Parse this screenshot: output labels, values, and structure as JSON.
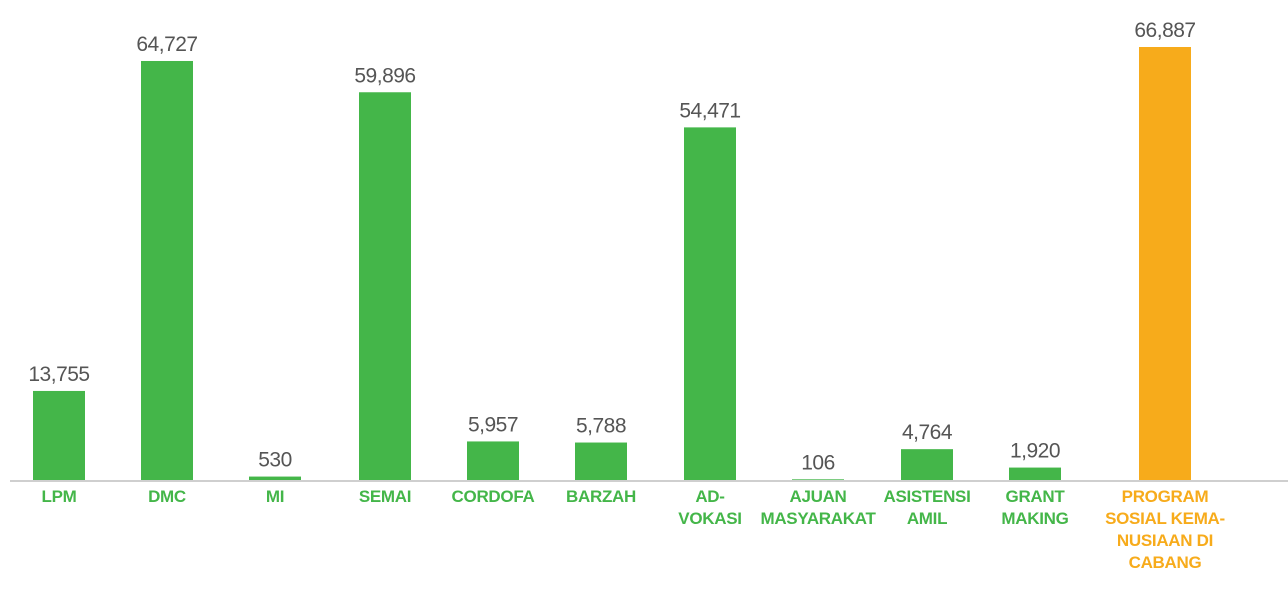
{
  "chart_data": {
    "type": "bar",
    "categories": [
      "LPM",
      "DMC",
      "MI",
      "SEMAI",
      "CORDOFA",
      "BARZAH",
      "AD-\nVOKASI",
      "AJUAN\nMASYARAKAT",
      "ASISTENSI\nAMIL",
      "GRANT\nMAKING",
      "PROGRAM\nSOSIAL KEMA-\nNUSIAAN DI\nCABANG"
    ],
    "values": [
      13755,
      64727,
      530,
      59896,
      5957,
      5788,
      54471,
      106,
      4764,
      1920,
      66887
    ],
    "value_labels": [
      "13,755",
      "64,727",
      "530",
      "59,896",
      "5,957",
      "5,788",
      "54,471",
      "106",
      "4,764",
      "1,920",
      "66,887"
    ],
    "colors": [
      "#44b649",
      "#44b649",
      "#44b649",
      "#44b649",
      "#44b649",
      "#44b649",
      "#44b649",
      "#44b649",
      "#44b649",
      "#44b649",
      "#f7ab1b"
    ]
  }
}
